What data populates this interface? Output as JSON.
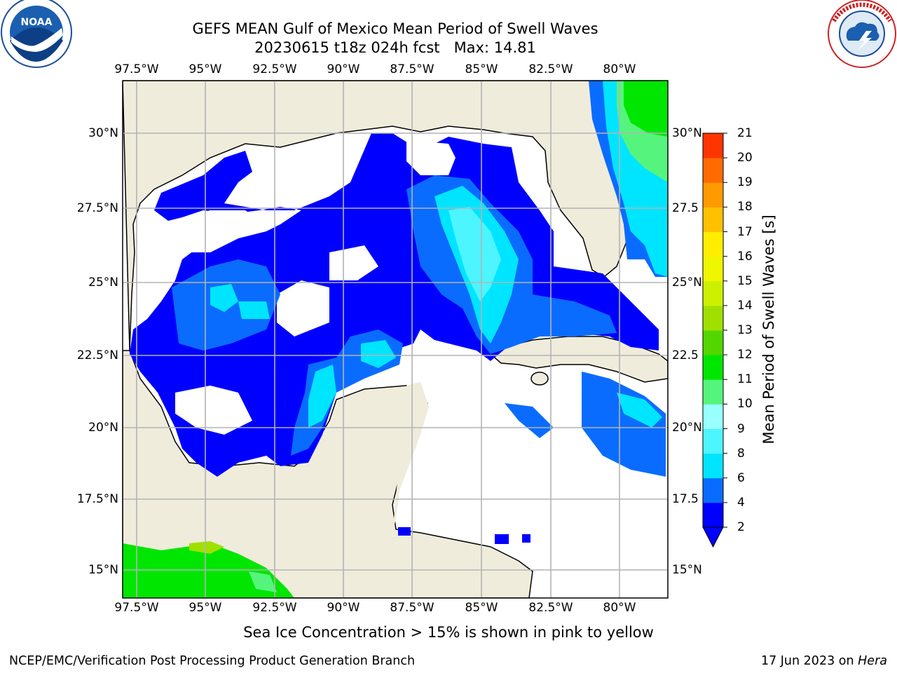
{
  "header": {
    "title_line1": "GEFS MEAN Gulf of Mexico Mean Period of Swell Waves",
    "title_line2": "20230615 t18z 024h fcst   Max: 14.81"
  },
  "logos": {
    "left": "NOAA",
    "left_ring_text": "NATIONAL OCEANIC AND ATMOSPHERIC ADMINISTRATION · U.S. DEPARTMENT OF COMMERCE",
    "right_ring_text": "NATIONAL WEATHER SERVICE"
  },
  "map": {
    "lon_labels": [
      "97.5°W",
      "95°W",
      "92.5°W",
      "90°W",
      "87.5°W",
      "85°W",
      "82.5°W",
      "80°W"
    ],
    "lat_labels_left": [
      "30°N",
      "27.5°N",
      "25°N",
      "22.5°N",
      "20°N",
      "17.5°N",
      "15°N"
    ],
    "lat_labels_right": [
      "30°N",
      "27.5",
      "25°N",
      "22.5",
      "20°N",
      "17.5",
      "15°N"
    ],
    "colors": {
      "land": "#efecdc",
      "grid": "#b3b3b3",
      "coast": "#000000"
    }
  },
  "colorbar": {
    "label": "Mean Period of Swell Waves [s]",
    "ticks": [
      "2",
      "4",
      "6",
      "8",
      "9",
      "10",
      "11",
      "12",
      "13",
      "14",
      "15",
      "16",
      "17",
      "18",
      "19",
      "20",
      "21"
    ],
    "colors": [
      "#0000ff",
      "#0a6cff",
      "#00e5ff",
      "#4cf5ff",
      "#99ffff",
      "#55f57d",
      "#00e600",
      "#53d600",
      "#a0e000",
      "#ccf000",
      "#f0f500",
      "#ffee00",
      "#ffc000",
      "#ff9a00",
      "#ff6b00",
      "#ff3500"
    ]
  },
  "footer": {
    "note": "Sea Ice Concentration > 15% is shown in pink to yellow",
    "left": "NCEP/EMC/Verification Post Processing Product Generation Branch",
    "right_prefix": "17 Jun 2023 on ",
    "right_host": "Hera"
  }
}
